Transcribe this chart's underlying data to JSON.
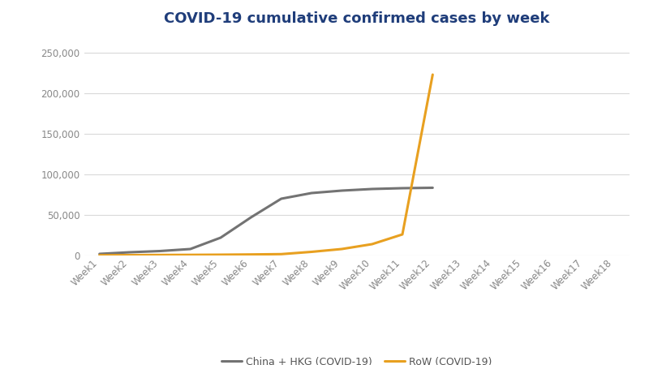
{
  "title": "COVID-19 cumulative confirmed cases by week",
  "title_color": "#1f3d7a",
  "weeks": [
    "Week1",
    "Week2",
    "Week3",
    "Week4",
    "Week5",
    "Week6",
    "Week7",
    "Week8",
    "Week9",
    "Week10",
    "Week11",
    "Week12",
    "Week13",
    "Week14",
    "Week15",
    "Week16",
    "Week17",
    "Week18"
  ],
  "china_data": [
    2000,
    4000,
    5500,
    8000,
    22000,
    47000,
    70000,
    77000,
    80000,
    82000,
    83000,
    83500,
    null,
    null,
    null,
    null,
    null,
    null
  ],
  "row_data": [
    300,
    500,
    700,
    800,
    1000,
    1300,
    1700,
    4500,
    8000,
    14000,
    26000,
    223000,
    null,
    null,
    null,
    null,
    null,
    null
  ],
  "china_color": "#737373",
  "row_color": "#E8A020",
  "legend_china": "China + HKG (COVID-19)",
  "legend_row": "RoW (COVID-19)",
  "ylim": [
    0,
    270000
  ],
  "yticks": [
    0,
    50000,
    100000,
    150000,
    200000,
    250000
  ],
  "background_color": "#ffffff",
  "grid_color": "#d9d9d9",
  "line_width": 2.2,
  "fig_width": 8.0,
  "fig_height": 4.5,
  "dpi": 100,
  "title_fontsize": 13,
  "tick_fontsize": 8.5,
  "legend_fontsize": 9
}
